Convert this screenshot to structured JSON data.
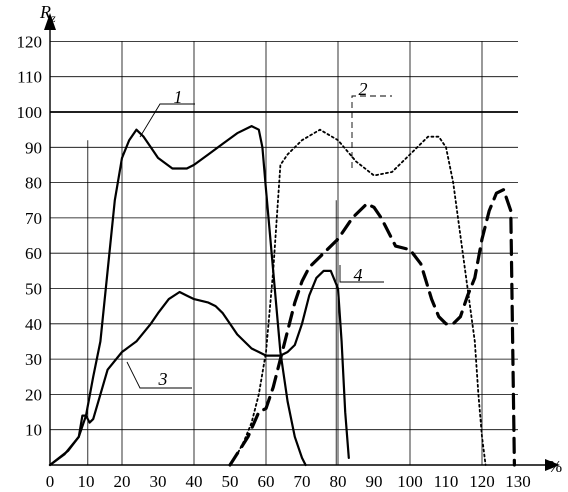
{
  "chart_data": {
    "type": "line",
    "title": "",
    "xlabel": "%",
    "ylabel": "Rz",
    "ylabel_sub": "z",
    "ylabel_main": "R",
    "xlim": [
      0,
      130
    ],
    "ylim": [
      0,
      120
    ],
    "xticks": [
      "0",
      "10",
      "20",
      "30",
      "40",
      "50",
      "60",
      "70",
      "80",
      "90",
      "100",
      "110",
      "120",
      "130"
    ],
    "yticks": [
      "10",
      "20",
      "30",
      "40",
      "50",
      "60",
      "70",
      "80",
      "90",
      "100",
      "110",
      "120"
    ],
    "grid": true,
    "series": [
      {
        "name": "1",
        "style": "solid",
        "x": [
          0,
          5,
          8,
          10,
          12,
          14,
          16,
          18,
          20,
          22,
          24,
          26,
          28,
          30,
          34,
          38,
          40,
          44,
          48,
          52,
          56,
          58,
          59,
          60,
          62,
          64,
          66,
          68,
          70,
          71
        ],
        "y": [
          0,
          4,
          8,
          14,
          25,
          35,
          55,
          75,
          87,
          92,
          95,
          93,
          90,
          87,
          84,
          84,
          85,
          88,
          91,
          94,
          96,
          95,
          90,
          78,
          55,
          32,
          18,
          8,
          2,
          0
        ]
      },
      {
        "name": "2",
        "style": "dotted",
        "x": [
          50,
          52,
          54,
          56,
          58,
          60,
          62,
          64,
          66,
          70,
          75,
          80,
          85,
          90,
          95,
          100,
          105,
          108,
          110,
          112,
          114,
          116,
          118,
          119,
          120,
          121
        ],
        "y": [
          0,
          3,
          7,
          12,
          20,
          32,
          55,
          85,
          88,
          92,
          95,
          92,
          86,
          82,
          83,
          88,
          93,
          93,
          90,
          80,
          65,
          50,
          35,
          20,
          8,
          0
        ]
      },
      {
        "name": "3",
        "style": "solid",
        "x": [
          0,
          4,
          8,
          9,
          10,
          11,
          12,
          14,
          16,
          20,
          24,
          28,
          30,
          33,
          36,
          38,
          40,
          44,
          46,
          48,
          50,
          52,
          56,
          58,
          60,
          62,
          64,
          66,
          68,
          70,
          72,
          74,
          76,
          78,
          80,
          81,
          82,
          83
        ],
        "y": [
          0,
          3,
          8,
          14,
          14,
          12,
          13,
          20,
          27,
          32,
          35,
          40,
          43,
          47,
          49,
          48,
          47,
          46,
          45,
          43,
          40,
          37,
          33,
          32,
          31,
          31,
          31,
          32,
          34,
          40,
          48,
          53,
          55,
          55,
          50,
          35,
          15,
          2
        ]
      },
      {
        "name": "4",
        "style": "dashed",
        "x": [
          50,
          55,
          58,
          60,
          62,
          64,
          66,
          68,
          70,
          72,
          76,
          80,
          84,
          88,
          90,
          92,
          96,
          100,
          103,
          106,
          108,
          110,
          112,
          114,
          116,
          118,
          120,
          122,
          124,
          126,
          128,
          129
        ],
        "y": [
          0,
          8,
          15,
          16,
          22,
          30,
          38,
          46,
          52,
          56,
          60,
          64,
          70,
          74,
          73,
          70,
          62,
          61,
          57,
          47,
          42,
          40,
          40,
          42,
          48,
          53,
          64,
          72,
          77,
          78,
          72,
          0
        ]
      }
    ],
    "annotations": [
      "1",
      "2",
      "3",
      "4"
    ]
  }
}
